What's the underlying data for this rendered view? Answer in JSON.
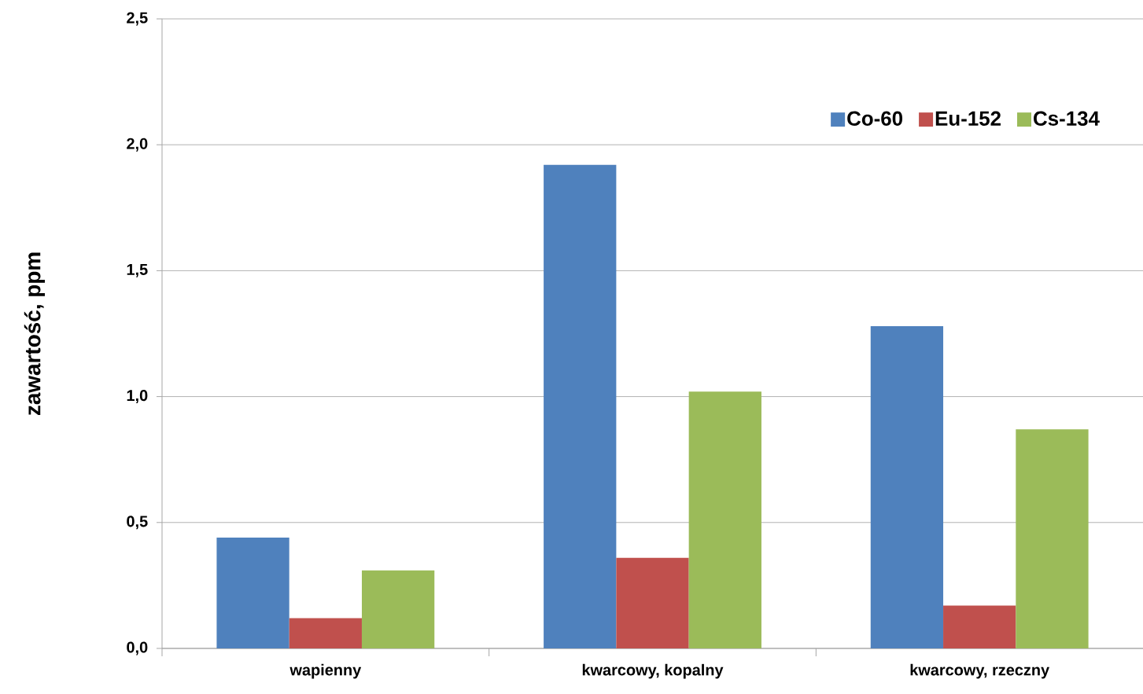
{
  "chart_data": {
    "type": "bar",
    "ylabel": "zawartość, ppm",
    "categories": [
      "wapienny",
      "kwarcowy, kopalny",
      "kwarcowy, rzeczny"
    ],
    "series": [
      {
        "name": "Co-60",
        "color": "#4f81bd",
        "values": [
          0.44,
          1.92,
          1.28
        ]
      },
      {
        "name": "Eu-152",
        "color": "#c0504d",
        "values": [
          0.12,
          0.36,
          0.17
        ]
      },
      {
        "name": "Cs-134",
        "color": "#9bbb59",
        "values": [
          0.31,
          1.02,
          0.87
        ]
      }
    ],
    "ylim": [
      0,
      2.5
    ],
    "yticks": [
      {
        "value": 0,
        "label": "0,0"
      },
      {
        "value": 0.5,
        "label": "0,5"
      },
      {
        "value": 1,
        "label": "1,0"
      },
      {
        "value": 1.5,
        "label": "1,5"
      },
      {
        "value": 2,
        "label": "2,0"
      },
      {
        "value": 2.5,
        "label": "2,5"
      }
    ],
    "grid": "y",
    "legend": "top right"
  }
}
